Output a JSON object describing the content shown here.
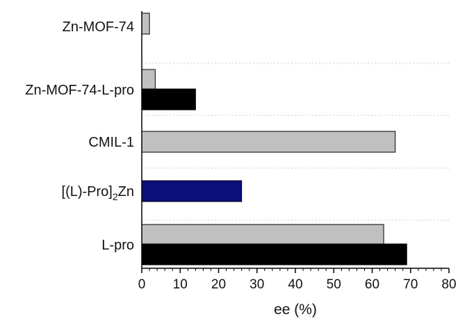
{
  "chart_data": {
    "type": "bar",
    "orientation": "horizontal",
    "categories": [
      "Zn-MOF-74",
      "Zn-MOF-74-L-pro",
      "CMIL-1",
      "[(L)-Pro]",
      "L-pro"
    ],
    "category_subscript": {
      "[(L)-Pro]": {
        "sub": "2",
        "suffix": "Zn"
      }
    },
    "bars": [
      {
        "category": "Zn-MOF-74",
        "value": 2,
        "color": "#c0c0c0"
      },
      {
        "category": "Zn-MOF-74-L-pro",
        "value": 3.5,
        "color": "#c0c0c0"
      },
      {
        "category": "Zn-MOF-74-L-pro",
        "value": 14,
        "color": "#000000"
      },
      {
        "category": "CMIL-1",
        "value": 66,
        "color": "#c0c0c0"
      },
      {
        "category": "[(L)-Pro]",
        "value": 26,
        "color": "#0a0f7a"
      },
      {
        "category": "L-pro",
        "value": 63,
        "color": "#c0c0c0"
      },
      {
        "category": "L-pro",
        "value": 69,
        "color": "#000000"
      }
    ],
    "xlabel": "ee (%)",
    "ylabel": "",
    "xlim": [
      0,
      80
    ],
    "xticks": [
      0,
      10,
      20,
      30,
      40,
      50,
      60,
      70,
      80
    ],
    "grid": "horizontal dotted separators between categories"
  },
  "colors": {
    "grey_bar": "#c0c0c0",
    "black_bar": "#000000",
    "navy_bar": "#0a0f7a",
    "axis": "#000000",
    "grid": "#cfcfcf"
  }
}
